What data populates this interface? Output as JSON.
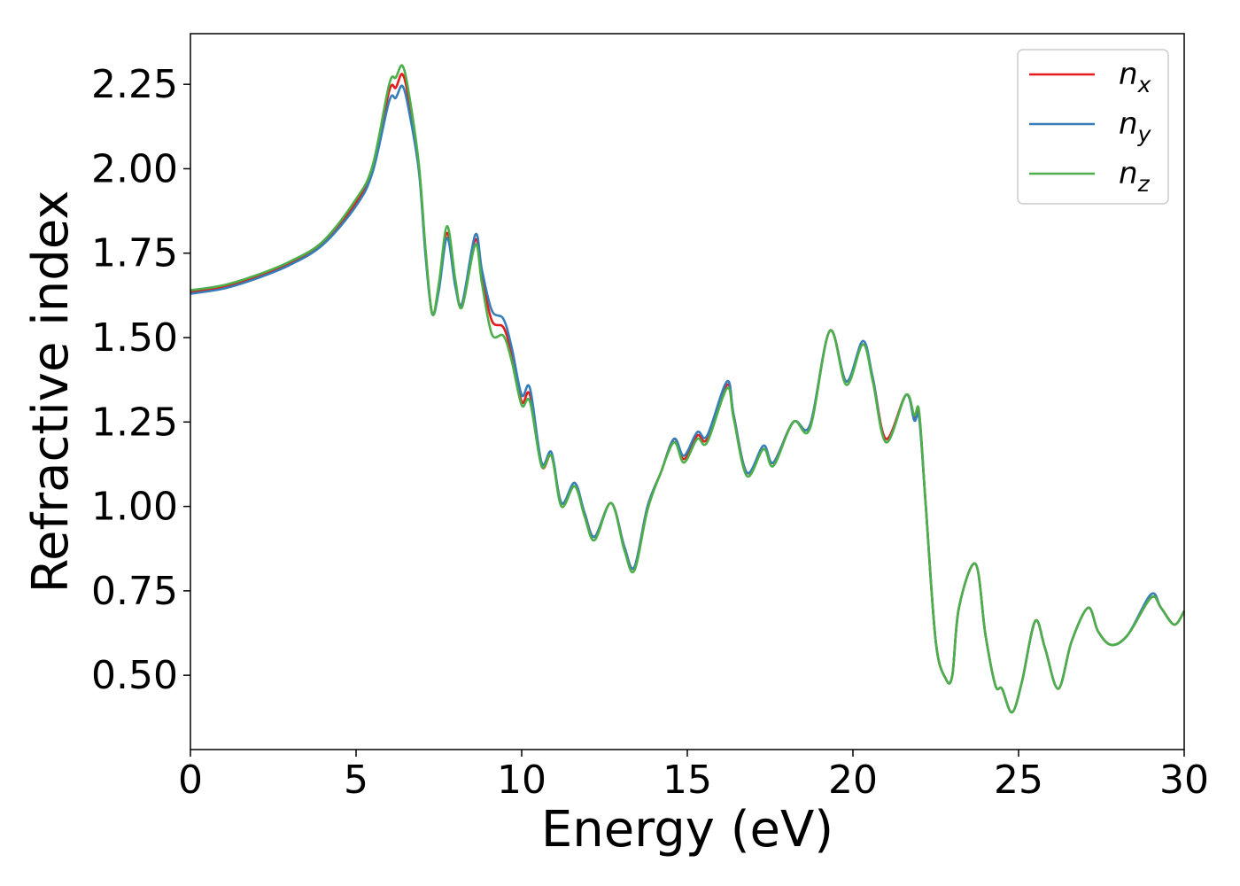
{
  "chart_data": {
    "type": "line",
    "title": "",
    "xlabel": "Energy (eV)",
    "ylabel": "Refractive index",
    "xlim": [
      0,
      30
    ],
    "ylim": [
      0.28,
      2.4
    ],
    "x_ticks": [
      "0",
      "5",
      "10",
      "15",
      "20",
      "25",
      "30"
    ],
    "y_ticks": [
      "0.50",
      "0.75",
      "1.00",
      "1.25",
      "1.50",
      "1.75",
      "2.00",
      "2.25"
    ],
    "grid": false,
    "legend_position": "top-right",
    "series": [
      {
        "name": "n_x",
        "label_base": "n",
        "label_sub": "x",
        "color": "#e41a1c",
        "x": [
          0,
          1,
          2,
          3,
          4,
          5,
          5.5,
          6,
          6.2,
          6.4,
          6.6,
          6.9,
          7.1,
          7.3,
          7.5,
          7.75,
          8.0,
          8.2,
          8.6,
          8.8,
          9.1,
          9.45,
          9.7,
          10.0,
          10.25,
          10.6,
          10.9,
          11.2,
          11.6,
          11.9,
          12.2,
          12.7,
          13.1,
          13.4,
          13.8,
          14.2,
          14.6,
          14.9,
          15.3,
          15.6,
          16.2,
          16.4,
          16.8,
          17.3,
          17.6,
          18.2,
          18.7,
          19.3,
          19.8,
          20.3,
          20.6,
          21.0,
          21.6,
          21.85,
          22.0,
          22.2,
          22.5,
          22.8,
          23.0,
          23.2,
          23.7,
          24.0,
          24.3,
          24.5,
          24.8,
          25.1,
          25.5,
          25.8,
          26.2,
          26.6,
          27.1,
          27.4,
          27.8,
          28.3,
          29.0,
          29.3,
          29.7,
          30.0
        ],
        "y": [
          1.635,
          1.65,
          1.68,
          1.72,
          1.78,
          1.9,
          2.0,
          2.23,
          2.24,
          2.28,
          2.2,
          2.0,
          1.75,
          1.57,
          1.65,
          1.81,
          1.66,
          1.6,
          1.79,
          1.68,
          1.55,
          1.53,
          1.45,
          1.31,
          1.33,
          1.12,
          1.15,
          1.01,
          1.06,
          0.98,
          0.91,
          1.01,
          0.88,
          0.82,
          1.0,
          1.1,
          1.2,
          1.14,
          1.21,
          1.2,
          1.36,
          1.27,
          1.1,
          1.17,
          1.13,
          1.25,
          1.24,
          1.52,
          1.37,
          1.48,
          1.38,
          1.2,
          1.33,
          1.26,
          1.27,
          1.0,
          0.6,
          0.49,
          0.5,
          0.7,
          0.83,
          0.62,
          0.47,
          0.46,
          0.39,
          0.48,
          0.66,
          0.58,
          0.46,
          0.6,
          0.7,
          0.63,
          0.59,
          0.62,
          0.73,
          0.7,
          0.65,
          0.69
        ]
      },
      {
        "name": "n_y",
        "label_base": "n",
        "label_sub": "y",
        "color": "#377eb8",
        "x": [
          0,
          1,
          2,
          3,
          4,
          5,
          5.5,
          6,
          6.2,
          6.4,
          6.6,
          6.9,
          7.1,
          7.3,
          7.5,
          7.75,
          8.0,
          8.2,
          8.6,
          8.8,
          9.1,
          9.45,
          9.7,
          10.0,
          10.25,
          10.6,
          10.9,
          11.2,
          11.6,
          11.9,
          12.2,
          12.7,
          13.1,
          13.4,
          13.8,
          14.2,
          14.6,
          14.9,
          15.3,
          15.6,
          16.2,
          16.4,
          16.8,
          17.3,
          17.6,
          18.2,
          18.7,
          19.3,
          19.8,
          20.3,
          20.6,
          21.0,
          21.6,
          21.85,
          22.0,
          22.2,
          22.5,
          22.8,
          23.0,
          23.2,
          23.7,
          24.0,
          24.3,
          24.5,
          24.8,
          25.1,
          25.5,
          25.8,
          26.2,
          26.6,
          27.1,
          27.4,
          27.8,
          28.3,
          29.0,
          29.3,
          29.7,
          30.0
        ],
        "y": [
          1.63,
          1.645,
          1.675,
          1.715,
          1.775,
          1.89,
          1.99,
          2.2,
          2.21,
          2.245,
          2.17,
          1.99,
          1.74,
          1.57,
          1.64,
          1.795,
          1.65,
          1.6,
          1.805,
          1.7,
          1.58,
          1.555,
          1.47,
          1.33,
          1.35,
          1.13,
          1.16,
          1.01,
          1.07,
          0.98,
          0.91,
          1.01,
          0.88,
          0.82,
          1.0,
          1.1,
          1.2,
          1.15,
          1.22,
          1.21,
          1.37,
          1.27,
          1.1,
          1.18,
          1.13,
          1.25,
          1.24,
          1.52,
          1.37,
          1.49,
          1.38,
          1.19,
          1.33,
          1.255,
          1.26,
          1.0,
          0.6,
          0.49,
          0.5,
          0.7,
          0.83,
          0.62,
          0.47,
          0.46,
          0.39,
          0.48,
          0.66,
          0.58,
          0.46,
          0.6,
          0.7,
          0.63,
          0.59,
          0.62,
          0.74,
          0.7,
          0.65,
          0.69
        ]
      },
      {
        "name": "n_z",
        "label_base": "n",
        "label_sub": "z",
        "color": "#4daf4a",
        "x": [
          0,
          1,
          2,
          3,
          4,
          5,
          5.5,
          6,
          6.2,
          6.4,
          6.6,
          6.9,
          7.1,
          7.3,
          7.5,
          7.75,
          8.0,
          8.2,
          8.6,
          8.8,
          9.1,
          9.45,
          9.7,
          10.0,
          10.25,
          10.6,
          10.9,
          11.2,
          11.6,
          11.9,
          12.2,
          12.7,
          13.1,
          13.4,
          13.8,
          14.2,
          14.6,
          14.9,
          15.3,
          15.6,
          16.2,
          16.4,
          16.8,
          17.3,
          17.6,
          18.2,
          18.7,
          19.3,
          19.8,
          20.3,
          20.6,
          21.0,
          21.6,
          21.85,
          22.0,
          22.2,
          22.5,
          22.8,
          23.0,
          23.2,
          23.7,
          24.0,
          24.3,
          24.5,
          24.8,
          25.1,
          25.5,
          25.8,
          26.2,
          26.6,
          27.1,
          27.4,
          27.8,
          28.3,
          29.0,
          29.3,
          29.7,
          30.0
        ],
        "y": [
          1.64,
          1.655,
          1.685,
          1.725,
          1.785,
          1.91,
          2.01,
          2.25,
          2.27,
          2.305,
          2.22,
          2.01,
          1.76,
          1.57,
          1.66,
          1.83,
          1.67,
          1.59,
          1.775,
          1.66,
          1.51,
          1.505,
          1.43,
          1.3,
          1.31,
          1.12,
          1.15,
          1.0,
          1.06,
          0.97,
          0.9,
          1.01,
          0.87,
          0.81,
          0.99,
          1.1,
          1.19,
          1.13,
          1.2,
          1.19,
          1.35,
          1.26,
          1.09,
          1.17,
          1.12,
          1.25,
          1.23,
          1.52,
          1.36,
          1.48,
          1.37,
          1.19,
          1.33,
          1.27,
          1.28,
          1.0,
          0.6,
          0.49,
          0.5,
          0.7,
          0.83,
          0.62,
          0.47,
          0.46,
          0.39,
          0.48,
          0.66,
          0.58,
          0.46,
          0.6,
          0.7,
          0.63,
          0.59,
          0.62,
          0.73,
          0.7,
          0.65,
          0.69
        ]
      }
    ]
  }
}
